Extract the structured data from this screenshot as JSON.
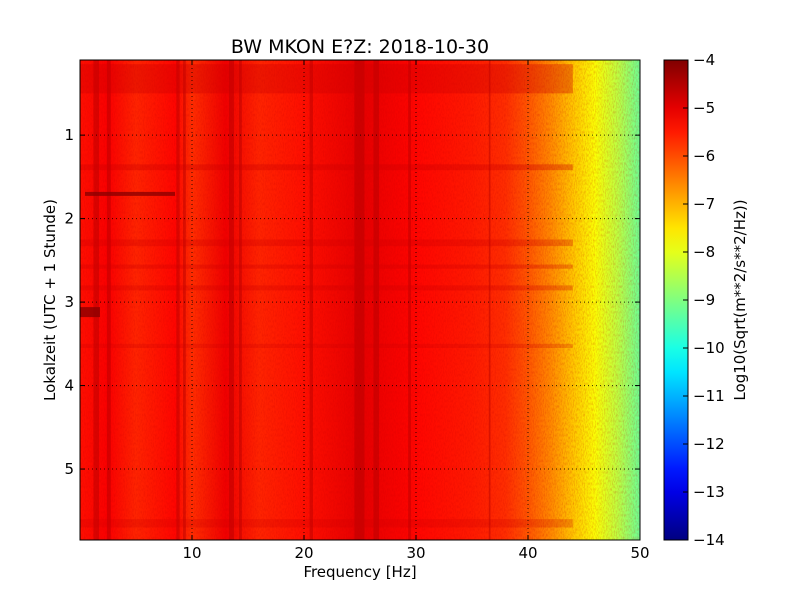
{
  "chart_data": {
    "type": "heatmap",
    "title": "BW MKON E?Z: 2018-10-30",
    "xlabel": "Frequency [Hz]",
    "ylabel": "Lokalzeit (UTC + 1 Stunde)",
    "xlim": [
      0,
      50
    ],
    "ylim": [
      0.1,
      5.85
    ],
    "y_inverted": true,
    "x_ticks": [
      {
        "value": 10,
        "label": "10"
      },
      {
        "value": 20,
        "label": "20"
      },
      {
        "value": 30,
        "label": "30"
      },
      {
        "value": 40,
        "label": "40"
      },
      {
        "value": 50,
        "label": "50"
      }
    ],
    "y_ticks": [
      {
        "value": 1,
        "label": "1"
      },
      {
        "value": 2,
        "label": "2"
      },
      {
        "value": 3,
        "label": "3"
      },
      {
        "value": 4,
        "label": "4"
      },
      {
        "value": 5,
        "label": "5"
      }
    ],
    "grid": true,
    "colorscale": "jet",
    "colorbar": {
      "label": "Log10(Sqrt(m**2/s**2/Hz))",
      "range": [
        -14,
        -4
      ],
      "ticks": [
        {
          "value": -4,
          "label": "−4"
        },
        {
          "value": -5,
          "label": "−5"
        },
        {
          "value": -6,
          "label": "−6"
        },
        {
          "value": -7,
          "label": "−7"
        },
        {
          "value": -8,
          "label": "−8"
        },
        {
          "value": -9,
          "label": "−9"
        },
        {
          "value": -10,
          "label": "−10"
        },
        {
          "value": -11,
          "label": "−11"
        },
        {
          "value": -12,
          "label": "−12"
        },
        {
          "value": -13,
          "label": "−13"
        },
        {
          "value": -14,
          "label": "−14"
        }
      ]
    },
    "frequency_profile": [
      {
        "freq": 0,
        "value": -5.4
      },
      {
        "freq": 2.5,
        "value": -5.2
      },
      {
        "freq": 5,
        "value": -5.6
      },
      {
        "freq": 8.5,
        "value": -5.3
      },
      {
        "freq": 10,
        "value": -5.7
      },
      {
        "freq": 13,
        "value": -5.1
      },
      {
        "freq": 16,
        "value": -5.6
      },
      {
        "freq": 20,
        "value": -5.4
      },
      {
        "freq": 25,
        "value": -5.0
      },
      {
        "freq": 30,
        "value": -5.3
      },
      {
        "freq": 35,
        "value": -5.5
      },
      {
        "freq": 38,
        "value": -5.7
      },
      {
        "freq": 40,
        "value": -6.1
      },
      {
        "freq": 42,
        "value": -6.6
      },
      {
        "freq": 44,
        "value": -7.2
      },
      {
        "freq": 46,
        "value": -7.8
      },
      {
        "freq": 48,
        "value": -8.4
      },
      {
        "freq": 50,
        "value": -9.2
      }
    ]
  }
}
